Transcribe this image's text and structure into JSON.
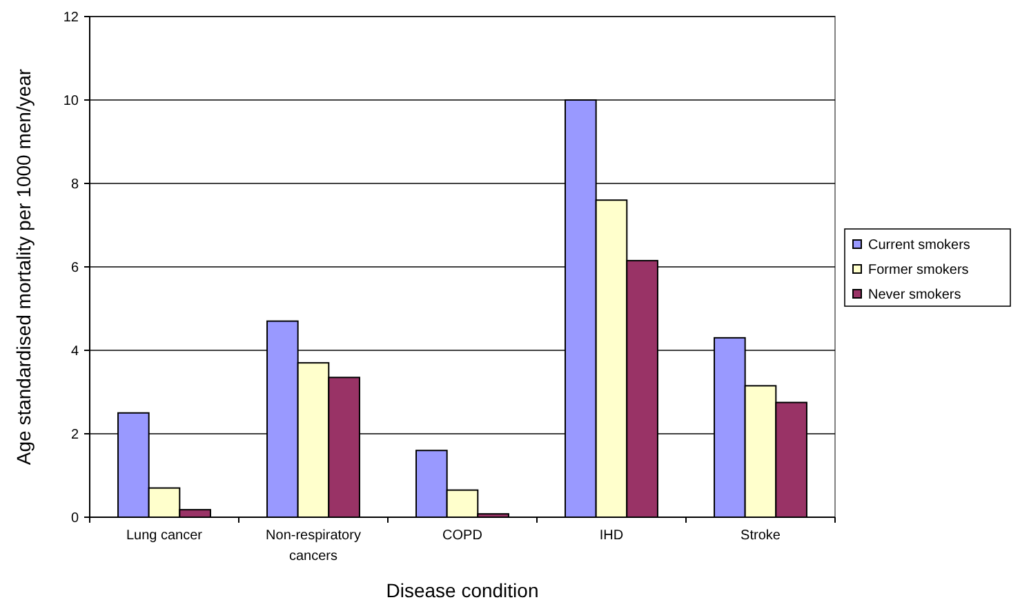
{
  "chart_data": {
    "type": "bar",
    "xlabel": "Disease condition",
    "ylabel": "Age standardised mortality per 1000 men/year",
    "categories": [
      "Lung cancer",
      "Non-respiratory cancers",
      "COPD",
      "IHD",
      "Stroke"
    ],
    "series": [
      {
        "name": "Current smokers",
        "color": "#9999ff",
        "values": [
          2.5,
          4.7,
          1.6,
          10,
          4.3
        ]
      },
      {
        "name": "Former smokers",
        "color": "#ffffcc",
        "values": [
          0.7,
          3.7,
          0.65,
          7.6,
          3.15
        ]
      },
      {
        "name": "Never smokers",
        "color": "#993366",
        "values": [
          0.18,
          3.35,
          0.08,
          6.15,
          2.75
        ]
      }
    ],
    "ylim": [
      0,
      12
    ],
    "yticks": [
      0,
      2,
      4,
      6,
      8,
      10,
      12
    ],
    "grid": "y",
    "legend": "right"
  }
}
